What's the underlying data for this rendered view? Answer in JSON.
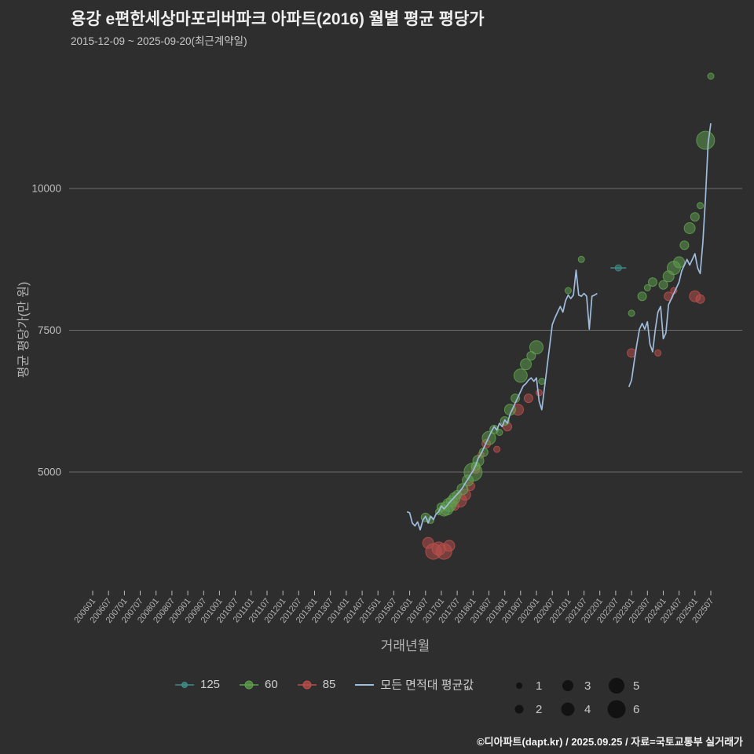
{
  "title": "용강 e편한세상마포리버파크 아파트(2016) 월별 평균 평당가",
  "subtitle": "2015-12-09 ~ 2025-09-20(최근계약일)",
  "footer": "©디아파트(dapt.kr) / 2025.09.25 / 자료=국토교통부 실거래가",
  "legend": {
    "items": [
      {
        "label": "125",
        "color": "#3f8f8c",
        "marker": "line-dot",
        "r": 3.5
      },
      {
        "label": "60",
        "color": "#5fa04e",
        "marker": "line-dot",
        "r": 5
      },
      {
        "label": "85",
        "color": "#bb4f4b",
        "marker": "line-dot",
        "r": 5
      },
      {
        "label": "모든 면적대 평균값",
        "color": "#9fbcdc",
        "marker": "line",
        "r": 0
      }
    ]
  },
  "size_legend": {
    "order": [
      1,
      3,
      5,
      2,
      4,
      6
    ]
  },
  "chart_data": {
    "type": "scatter",
    "title": "용강 e편한세상마포리버파크 아파트(2016) 월별 평균 평당가",
    "xlabel": "거래년월",
    "ylabel": "평균 평당가(만 원)",
    "yticks": [
      5000,
      7500,
      10000
    ],
    "ylim": [
      2800,
      12100
    ],
    "grid": "horizontal",
    "legend_position": "bottom",
    "xticks": [
      "200601",
      "200607",
      "200701",
      "200707",
      "200801",
      "200807",
      "200901",
      "200907",
      "201001",
      "201007",
      "201101",
      "201107",
      "201201",
      "201207",
      "201301",
      "201307",
      "201401",
      "201407",
      "201501",
      "201507",
      "201601",
      "201607",
      "201701",
      "201707",
      "201801",
      "201807",
      "201901",
      "201907",
      "202001",
      "202007",
      "202101",
      "202107",
      "202201",
      "202207",
      "202301",
      "202307",
      "202401",
      "202407",
      "202501",
      "202507"
    ],
    "series": [
      {
        "name": "125",
        "color": "#3f8f8c",
        "marker": "line-dot",
        "points": [
          [
            "202208",
            8600,
            1
          ]
        ]
      },
      {
        "name": "85",
        "color": "#bb4f4b",
        "marker": "dot",
        "points": [
          [
            "201608",
            3750,
            3
          ],
          [
            "201610",
            3600,
            5
          ],
          [
            "201612",
            3650,
            4
          ],
          [
            "201702",
            3600,
            5
          ],
          [
            "201704",
            3700,
            3
          ],
          [
            "201706",
            4400,
            2
          ],
          [
            "201708",
            4500,
            4
          ],
          [
            "201710",
            4600,
            3
          ],
          [
            "201712",
            4750,
            2
          ],
          [
            "201802",
            5050,
            2
          ],
          [
            "201804",
            5300,
            1
          ],
          [
            "201806",
            5500,
            2
          ],
          [
            "201810",
            5400,
            1
          ],
          [
            "201902",
            5800,
            2
          ],
          [
            "201906",
            6100,
            3
          ],
          [
            "201910",
            6300,
            2
          ],
          [
            "202002",
            6400,
            1
          ],
          [
            "202301",
            7100,
            2
          ],
          [
            "202311",
            7100,
            1
          ],
          [
            "202403",
            8100,
            2
          ],
          [
            "202405",
            8200,
            1
          ],
          [
            "202501",
            8100,
            3
          ],
          [
            "202503",
            8050,
            2
          ]
        ]
      },
      {
        "name": "60",
        "color": "#5fa04e",
        "marker": "dot",
        "points": [
          [
            "201607",
            4200,
            2
          ],
          [
            "201609",
            4150,
            1
          ],
          [
            "201612",
            4300,
            1
          ],
          [
            "201701",
            4380,
            2
          ],
          [
            "201702",
            4320,
            3
          ],
          [
            "201703",
            4360,
            4
          ],
          [
            "201704",
            4420,
            4
          ],
          [
            "201705",
            4480,
            3
          ],
          [
            "201706",
            4540,
            3
          ],
          [
            "201707",
            4600,
            2
          ],
          [
            "201709",
            4700,
            3
          ],
          [
            "201711",
            4850,
            3
          ],
          [
            "201801",
            5000,
            6
          ],
          [
            "201802",
            5100,
            2
          ],
          [
            "201803",
            5200,
            3
          ],
          [
            "201805",
            5350,
            2
          ],
          [
            "201807",
            5600,
            4
          ],
          [
            "201809",
            5750,
            2
          ],
          [
            "201811",
            5700,
            1
          ],
          [
            "201901",
            5900,
            2
          ],
          [
            "201903",
            6100,
            3
          ],
          [
            "201905",
            6300,
            2
          ],
          [
            "201907",
            6700,
            4
          ],
          [
            "201909",
            6900,
            3
          ],
          [
            "201911",
            7050,
            2
          ],
          [
            "202001",
            7200,
            4
          ],
          [
            "202003",
            6600,
            1
          ],
          [
            "202101",
            8200,
            1
          ],
          [
            "202106",
            8750,
            1
          ],
          [
            "202301",
            7800,
            1
          ],
          [
            "202305",
            8100,
            2
          ],
          [
            "202307",
            8250,
            1
          ],
          [
            "202309",
            8350,
            2
          ],
          [
            "202401",
            8300,
            2
          ],
          [
            "202403",
            8450,
            3
          ],
          [
            "202405",
            8600,
            4
          ],
          [
            "202407",
            8700,
            3
          ],
          [
            "202409",
            9000,
            2
          ],
          [
            "202411",
            9300,
            3
          ],
          [
            "202501",
            9500,
            2
          ],
          [
            "202503",
            9700,
            1
          ],
          [
            "202505",
            10850,
            6
          ],
          [
            "202507",
            11980,
            1
          ]
        ]
      }
    ],
    "line": {
      "name": "모든 면적대 평균값",
      "color": "#9fbcdc",
      "segments": [
        [
          [
            "201512",
            4300
          ],
          [
            "201601",
            4280
          ],
          [
            "201602",
            4100
          ],
          [
            "201603",
            4050
          ],
          [
            "201604",
            4120
          ],
          [
            "201605",
            3980
          ],
          [
            "201606",
            4150
          ],
          [
            "201607",
            4220
          ],
          [
            "201608",
            4100
          ],
          [
            "201609",
            4220
          ],
          [
            "201610",
            4160
          ],
          [
            "201611",
            4260
          ],
          [
            "201612",
            4300
          ],
          [
            "201701",
            4400
          ],
          [
            "201702",
            4350
          ],
          [
            "201703",
            4400
          ],
          [
            "201704",
            4460
          ],
          [
            "201705",
            4510
          ],
          [
            "201706",
            4560
          ],
          [
            "201707",
            4610
          ],
          [
            "201708",
            4660
          ],
          [
            "201709",
            4720
          ],
          [
            "201710",
            4800
          ],
          [
            "201711",
            4870
          ],
          [
            "201712",
            4950
          ],
          [
            "201801",
            5020
          ],
          [
            "201802",
            5120
          ],
          [
            "201803",
            5250
          ],
          [
            "201804",
            5320
          ],
          [
            "201805",
            5420
          ],
          [
            "201806",
            5520
          ],
          [
            "201807",
            5620
          ],
          [
            "201808",
            5720
          ],
          [
            "201809",
            5800
          ],
          [
            "201810",
            5740
          ],
          [
            "201811",
            5860
          ],
          [
            "201812",
            5800
          ],
          [
            "201901",
            5920
          ],
          [
            "201902",
            5860
          ],
          [
            "201903",
            6020
          ],
          [
            "201904",
            6120
          ],
          [
            "201905",
            6220
          ],
          [
            "201906",
            6320
          ],
          [
            "201907",
            6420
          ],
          [
            "201908",
            6520
          ],
          [
            "201909",
            6560
          ],
          [
            "201910",
            6620
          ],
          [
            "201911",
            6660
          ],
          [
            "201912",
            6600
          ],
          [
            "202001",
            6660
          ],
          [
            "202002",
            6250
          ],
          [
            "202003",
            6100
          ],
          [
            "202007",
            7600
          ],
          [
            "202008",
            7720
          ],
          [
            "202009",
            7820
          ],
          [
            "202010",
            7920
          ],
          [
            "202011",
            7820
          ],
          [
            "202012",
            8020
          ],
          [
            "202101",
            8120
          ],
          [
            "202102",
            8060
          ],
          [
            "202103",
            8120
          ],
          [
            "202104",
            8560
          ],
          [
            "202105",
            8120
          ],
          [
            "202106",
            8100
          ],
          [
            "202107",
            8150
          ],
          [
            "202108",
            8100
          ],
          [
            "202109",
            7520
          ],
          [
            "202110",
            8100
          ],
          [
            "202111",
            8120
          ],
          [
            "202112",
            8150
          ]
        ],
        [
          [
            "202212",
            6500
          ],
          [
            "202301",
            6620
          ],
          [
            "202302",
            6950
          ],
          [
            "202303",
            7250
          ],
          [
            "202304",
            7520
          ],
          [
            "202305",
            7620
          ],
          [
            "202306",
            7520
          ],
          [
            "202307",
            7650
          ],
          [
            "202308",
            7250
          ],
          [
            "202309",
            7120
          ],
          [
            "202310",
            7520
          ],
          [
            "202311",
            7820
          ],
          [
            "202312",
            7920
          ],
          [
            "202401",
            7350
          ],
          [
            "202402",
            7450
          ],
          [
            "202403",
            7950
          ],
          [
            "202404",
            8050
          ],
          [
            "202405",
            8150
          ],
          [
            "202406",
            8250
          ],
          [
            "202407",
            8350
          ],
          [
            "202408",
            8550
          ],
          [
            "202409",
            8650
          ],
          [
            "202410",
            8750
          ],
          [
            "202411",
            8650
          ],
          [
            "202412",
            8750
          ],
          [
            "202501",
            8850
          ],
          [
            "202502",
            8600
          ],
          [
            "202503",
            8500
          ],
          [
            "202504",
            9050
          ],
          [
            "202505",
            9850
          ],
          [
            "202506",
            10800
          ],
          [
            "202507",
            11150
          ]
        ]
      ]
    }
  }
}
